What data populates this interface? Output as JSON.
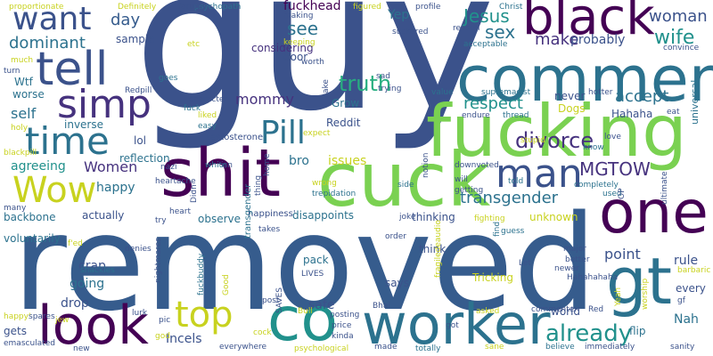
{
  "palette": {
    "purple": "#440154",
    "indigo": "#46327e",
    "blue": "#3b528b",
    "steel": "#365c8d",
    "slate": "#2c728e",
    "teal": "#21918c",
    "green": "#28ae80",
    "lime": "#5ec962",
    "chartreuse": "#addc30",
    "yellow": "#c8d21f"
  },
  "words": [
    {
      "text": "guy",
      "color": "#3b528b"
    },
    {
      "text": "removed",
      "color": "#365c8d"
    },
    {
      "text": "fucking",
      "color": "#7ad151"
    },
    {
      "text": "comment",
      "color": "#2c728e"
    },
    {
      "text": "cuck",
      "color": "#7ad151"
    },
    {
      "text": "shit",
      "color": "#440154"
    },
    {
      "text": "black",
      "color": "#440154"
    },
    {
      "text": "worker",
      "color": "#2c728e"
    },
    {
      "text": "one",
      "color": "#440154"
    },
    {
      "text": "gt",
      "color": "#2c728e"
    },
    {
      "text": "look",
      "color": "#440154"
    },
    {
      "text": "co",
      "color": "#21918c"
    },
    {
      "text": "time",
      "color": "#2c728e"
    },
    {
      "text": "tell",
      "color": "#3b528b"
    },
    {
      "text": "simp",
      "color": "#46327e"
    },
    {
      "text": "want",
      "color": "#3b528b"
    },
    {
      "text": "Pill",
      "color": "#2c728e"
    },
    {
      "text": "man",
      "color": "#3b528b"
    },
    {
      "text": "top",
      "color": "#c8d21f"
    },
    {
      "text": "Wow",
      "color": "#c8d21f"
    },
    {
      "text": "divorce",
      "color": "#46327e"
    },
    {
      "text": "transgender",
      "color": "#2c728e"
    },
    {
      "text": "already",
      "color": "#21918c"
    },
    {
      "text": "MGTOW",
      "color": "#46327e"
    },
    {
      "text": "Jesus",
      "color": "#21918c"
    },
    {
      "text": "see",
      "color": "#2c728e"
    },
    {
      "text": "sex",
      "color": "#2c728e"
    },
    {
      "text": "make",
      "color": "#46327e"
    },
    {
      "text": "woman",
      "color": "#3b528b"
    },
    {
      "text": "wife",
      "color": "#21918c"
    },
    {
      "text": "dominant",
      "color": "#2c728e"
    },
    {
      "text": "day",
      "color": "#365c8d"
    },
    {
      "text": "truth",
      "color": "#28ae80"
    },
    {
      "text": "respect",
      "color": "#21918c"
    },
    {
      "text": "accept",
      "color": "#2c728e"
    },
    {
      "text": "probably",
      "color": "#3b528b"
    },
    {
      "text": "fuckhead",
      "color": "#440154"
    },
    {
      "text": "Yep",
      "color": "#2c728e"
    },
    {
      "text": "mommy",
      "color": "#46327e"
    },
    {
      "text": "self",
      "color": "#2c728e"
    },
    {
      "text": "Women",
      "color": "#46327e"
    },
    {
      "text": "agreeing",
      "color": "#21918c"
    },
    {
      "text": "happy",
      "color": "#2c728e"
    },
    {
      "text": "issues",
      "color": "#c8d21f"
    },
    {
      "text": "bro",
      "color": "#2c728e"
    },
    {
      "text": "lol",
      "color": "#3b528b"
    },
    {
      "text": "inverse",
      "color": "#2c728e"
    },
    {
      "text": "Wtf",
      "color": "#2c728e"
    },
    {
      "text": "worse",
      "color": "#2c728e"
    },
    {
      "text": "reflection",
      "color": "#2c728e"
    },
    {
      "text": "Reddit",
      "color": "#3b528b"
    },
    {
      "text": "Grow",
      "color": "#2c728e"
    },
    {
      "text": "Hahaha",
      "color": "#3b528b"
    },
    {
      "text": "Dogs",
      "color": "#c8d21f"
    },
    {
      "text": "never",
      "color": "#3b528b"
    },
    {
      "text": "door",
      "color": "#3b528b"
    },
    {
      "text": "considering",
      "color": "#46327e"
    },
    {
      "text": "sample",
      "color": "#3b528b"
    },
    {
      "text": "backbone",
      "color": "#2c728e"
    },
    {
      "text": "actually",
      "color": "#3b528b"
    },
    {
      "text": "observe",
      "color": "#2c728e"
    },
    {
      "text": "disappoints",
      "color": "#2c728e"
    },
    {
      "text": "thinking",
      "color": "#3b528b"
    },
    {
      "text": "unknown",
      "color": "#c8d21f"
    },
    {
      "text": "point",
      "color": "#3b528b"
    },
    {
      "text": "rule",
      "color": "#3b528b"
    },
    {
      "text": "crap",
      "color": "#3b528b"
    },
    {
      "text": "going",
      "color": "#2c728e"
    },
    {
      "text": "drop",
      "color": "#3b528b"
    },
    {
      "text": "safe",
      "color": "#3b528b"
    },
    {
      "text": "pack",
      "color": "#2c728e"
    },
    {
      "text": "says",
      "color": "#3b528b"
    },
    {
      "text": "Tricking",
      "color": "#c8d21f"
    },
    {
      "text": "think",
      "color": "#3b528b"
    },
    {
      "text": "Nah",
      "color": "#2c728e"
    },
    {
      "text": "every",
      "color": "#3b528b"
    },
    {
      "text": "world",
      "color": "#3b528b"
    },
    {
      "text": "flip",
      "color": "#2c728e"
    },
    {
      "text": "Incels",
      "color": "#3b528b"
    },
    {
      "text": "voluntarily",
      "color": "#2c728e"
    },
    {
      "text": "gets",
      "color": "#3b528b"
    },
    {
      "text": "testosterone",
      "color": "#3b528b"
    },
    {
      "text": "happiness'",
      "color": "#3b528b"
    },
    {
      "text": "transgender",
      "color": "#2c728e"
    },
    {
      "text": "heartache",
      "color": "#3b528b"
    },
    {
      "text": "psychopath",
      "color": "#2c728e"
    },
    {
      "text": "proportionate",
      "color": "#c8d21f"
    },
    {
      "text": "Definitely",
      "color": "#c8d21f"
    },
    {
      "text": "forums",
      "color": "#3b528b"
    },
    {
      "text": "making",
      "color": "#3b528b"
    },
    {
      "text": "figured",
      "color": "#c8d21f"
    },
    {
      "text": "profile",
      "color": "#3b528b"
    },
    {
      "text": "Christ",
      "color": "#2c728e"
    },
    {
      "text": "convince",
      "color": "#3b528b"
    },
    {
      "text": "acceptable",
      "color": "#2c728e"
    },
    {
      "text": "suckered",
      "color": "#3b528b"
    },
    {
      "text": "supremacist",
      "color": "#2c728e"
    },
    {
      "text": "value",
      "color": "#2c728e"
    },
    {
      "text": "endure",
      "color": "#3b528b"
    },
    {
      "text": "thread",
      "color": "#2c728e"
    },
    {
      "text": "hotter",
      "color": "#3b528b"
    },
    {
      "text": "stupid",
      "color": "#c8d21f"
    },
    {
      "text": "love",
      "color": "#3b528b"
    },
    {
      "text": "know",
      "color": "#2c728e"
    },
    {
      "text": "downvoted",
      "color": "#3b528b"
    },
    {
      "text": "completely",
      "color": "#2c728e"
    },
    {
      "text": "used",
      "color": "#2c728e"
    },
    {
      "text": "will",
      "color": "#3b528b"
    },
    {
      "text": "getting",
      "color": "#3b528b"
    },
    {
      "text": "fighting",
      "color": "#c8d21f"
    },
    {
      "text": "told",
      "color": "#2c728e"
    },
    {
      "text": "find",
      "color": "#2c728e"
    },
    {
      "text": "major",
      "color": "#3b528b"
    },
    {
      "text": "better",
      "color": "#3b528b"
    },
    {
      "text": "newer",
      "color": "#3b528b"
    },
    {
      "text": "barbaric",
      "color": "#c8d21f"
    },
    {
      "text": "Hahahahaha",
      "color": "#3b528b"
    },
    {
      "text": "worship",
      "color": "#c8d21f"
    },
    {
      "text": "guess",
      "color": "#2c728e"
    },
    {
      "text": "fragiledeaudio",
      "color": "#c8d21f"
    },
    {
      "text": "order",
      "color": "#3b528b"
    },
    {
      "text": "joke",
      "color": "#3b528b"
    },
    {
      "text": "side",
      "color": "#2c728e"
    },
    {
      "text": "notion",
      "color": "#3b528b"
    },
    {
      "text": "Let",
      "color": "#3b528b"
    },
    {
      "text": "commenter",
      "color": "#3b528b"
    },
    {
      "text": "asked",
      "color": "#c8d21f"
    },
    {
      "text": "believe",
      "color": "#2c728e"
    },
    {
      "text": "immediately",
      "color": "#3b528b"
    },
    {
      "text": "sane",
      "color": "#c8d21f"
    },
    {
      "text": "made",
      "color": "#3b528b"
    },
    {
      "text": "totally",
      "color": "#2c728e"
    },
    {
      "text": "sanity",
      "color": "#3b528b"
    },
    {
      "text": "Red",
      "color": "#3b528b"
    },
    {
      "text": "Yeah",
      "color": "#c8d21f"
    },
    {
      "text": "everywhere",
      "color": "#3b528b"
    },
    {
      "text": "psychological",
      "color": "#c8d21f"
    },
    {
      "text": "price",
      "color": "#3b528b"
    },
    {
      "text": "posting",
      "color": "#3b528b"
    },
    {
      "text": "kinda",
      "color": "#3b528b"
    },
    {
      "text": "Bhai",
      "color": "#3b528b"
    },
    {
      "text": "got",
      "color": "#3b528b"
    },
    {
      "text": "post",
      "color": "#3b528b"
    },
    {
      "text": "cock",
      "color": "#c8d21f"
    },
    {
      "text": "Bull",
      "color": "#c8d21f"
    },
    {
      "text": "LIVES",
      "color": "#3b528b"
    },
    {
      "text": "SAVES",
      "color": "#3b528b"
    },
    {
      "text": "takes",
      "color": "#3b528b"
    },
    {
      "text": "fuckbuddy",
      "color": "#2c728e"
    },
    {
      "text": "Good",
      "color": "#c8d21f"
    },
    {
      "text": "nightmares",
      "color": "#3b528b"
    },
    {
      "text": "shackles",
      "color": "#2c728e"
    },
    {
      "text": "god",
      "color": "#c8d21f"
    },
    {
      "text": "pic",
      "color": "#3b528b"
    },
    {
      "text": "lurk",
      "color": "#3b528b"
    },
    {
      "text": "jew",
      "color": "#c8d21f"
    },
    {
      "text": "spares",
      "color": "#3b528b"
    },
    {
      "text": "new",
      "color": "#3b528b"
    },
    {
      "text": "emasculated",
      "color": "#3b528b"
    },
    {
      "text": "happy'",
      "color": "#c8d21f"
    },
    {
      "text": "f'ed",
      "color": "#c8d21f"
    },
    {
      "text": "denies",
      "color": "#3b528b"
    },
    {
      "text": "try",
      "color": "#3b528b"
    },
    {
      "text": "heart",
      "color": "#3b528b"
    },
    {
      "text": "Didn",
      "color": "#3b528b"
    },
    {
      "text": "white",
      "color": "#2c728e"
    },
    {
      "text": "isn",
      "color": "#3b528b"
    },
    {
      "text": "nazi",
      "color": "#3b528b"
    },
    {
      "text": "many",
      "color": "#3b528b"
    },
    {
      "text": "blackpill",
      "color": "#c8d21f"
    },
    {
      "text": "holy",
      "color": "#c8d21f"
    },
    {
      "text": "easy",
      "color": "#2c728e"
    },
    {
      "text": "liked",
      "color": "#c8d21f"
    },
    {
      "text": "fuck",
      "color": "#2c728e"
    },
    {
      "text": "Redpill",
      "color": "#3b528b"
    },
    {
      "text": "character",
      "color": "#3b528b"
    },
    {
      "text": "goes",
      "color": "#2c728e"
    },
    {
      "text": "etc",
      "color": "#c8d21f"
    },
    {
      "text": "turn",
      "color": "#3b528b"
    },
    {
      "text": "much",
      "color": "#c8d21f"
    },
    {
      "text": "keeping",
      "color": "#c8d21f"
    },
    {
      "text": "worth",
      "color": "#3b528b"
    },
    {
      "text": "cake",
      "color": "#3b528b"
    },
    {
      "text": "sad",
      "color": "#3b528b"
    },
    {
      "text": "trying",
      "color": "#3b528b"
    },
    {
      "text": "reason",
      "color": "#3b528b"
    },
    {
      "text": "OP",
      "color": "#3b528b"
    },
    {
      "text": "eat",
      "color": "#3b528b"
    },
    {
      "text": "universal",
      "color": "#2c728e"
    },
    {
      "text": "wrong",
      "color": "#c8d21f"
    },
    {
      "text": "trepidation",
      "color": "#2c728e"
    },
    {
      "text": "home",
      "color": "#3b528b"
    },
    {
      "text": "thing",
      "color": "#3b528b"
    },
    {
      "text": "expect",
      "color": "#c8d21f"
    },
    {
      "text": "ultimate",
      "color": "#3b528b"
    },
    {
      "text": "gf",
      "color": "#3b528b"
    },
    {
      "text": "way",
      "color": "#3b528b"
    },
    {
      "text": "mean",
      "color": "#c8d21f"
    }
  ]
}
